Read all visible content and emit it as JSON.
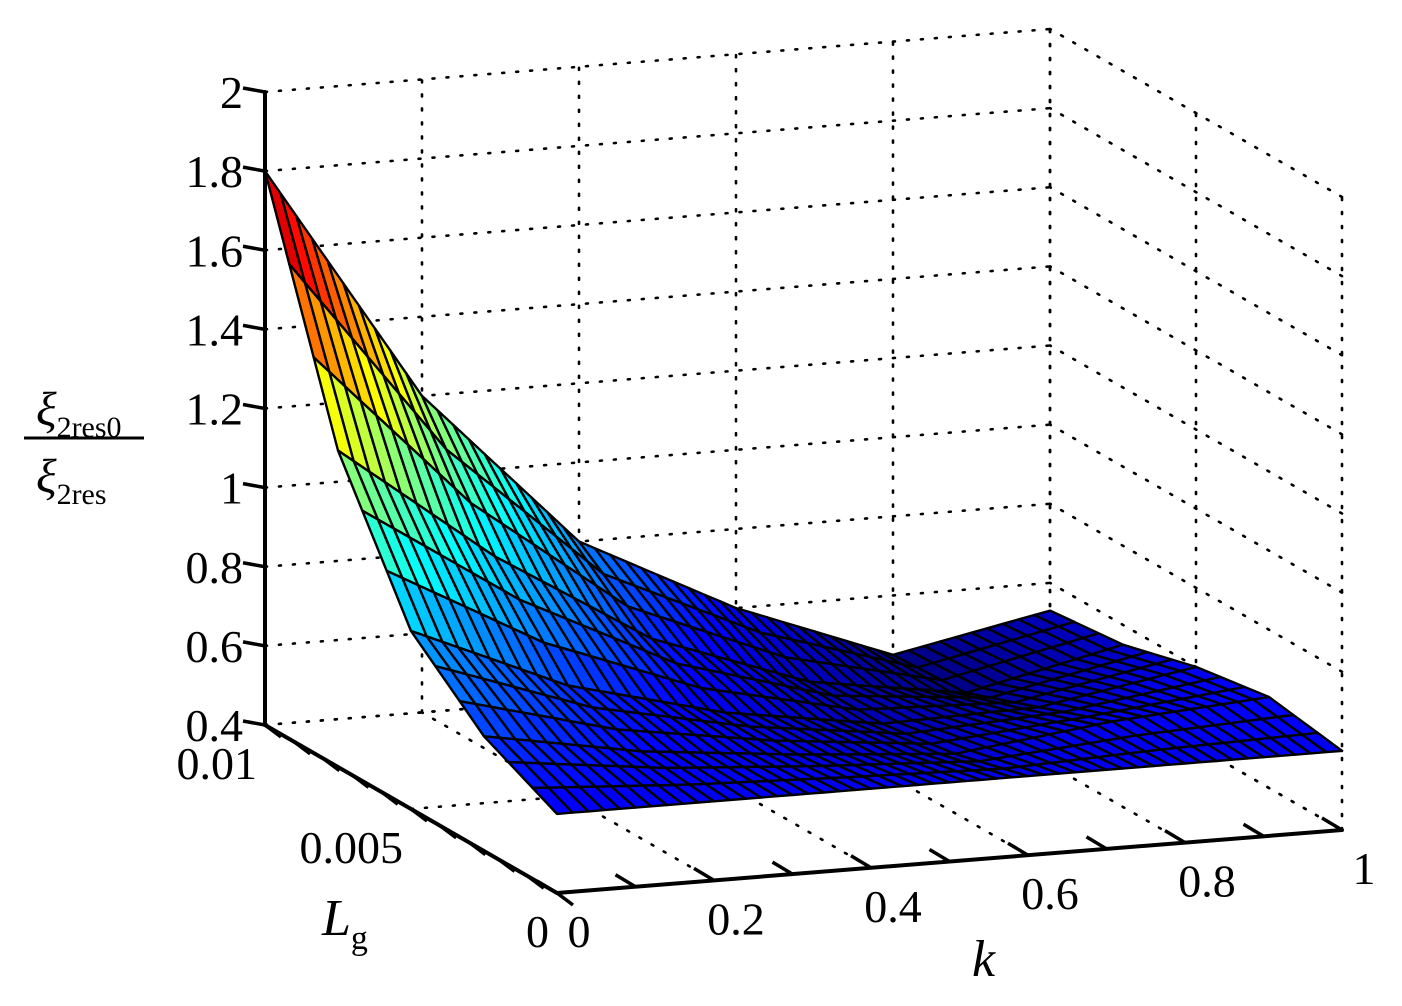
{
  "chart_data": {
    "type": "surface",
    "x_axis": {
      "label": "k",
      "range": [
        0,
        1
      ],
      "ticks": [
        0,
        0.2,
        0.4,
        0.6,
        0.8,
        1
      ],
      "tick_labels": [
        "0",
        "0.2",
        "0.4",
        "0.6",
        "0.8",
        "1"
      ]
    },
    "y_axis": {
      "label": "L",
      "label_subscript": "g",
      "range": [
        0,
        0.01
      ],
      "ticks": [
        0,
        0.005,
        0.01
      ],
      "tick_labels": [
        "0",
        "0.005",
        "0.01"
      ]
    },
    "z_axis": {
      "label_numerator": "ξ",
      "label_numerator_subscript": "2res0",
      "label_denominator": "ξ",
      "label_denominator_subscript": "2res",
      "range": [
        0.4,
        2
      ],
      "ticks": [
        0.4,
        0.6,
        0.8,
        1,
        1.2,
        1.4,
        1.6,
        1.8,
        2
      ],
      "tick_labels": [
        "0.4",
        "0.6",
        "0.8",
        "1",
        "1.2",
        "1.4",
        "1.6",
        "1.8",
        "2"
      ]
    },
    "grid": true,
    "colormap": "jet",
    "k_samples": [
      0,
      0.2,
      0.4,
      0.6,
      0.8,
      1
    ],
    "Lg_samples": [
      0,
      0.0025,
      0.005,
      0.0075,
      0.01
    ],
    "z_values_by_Lg": [
      [
        0.6,
        0.6,
        0.6,
        0.6,
        0.6,
        0.6
      ],
      [
        0.69,
        0.62,
        0.58,
        0.55,
        0.6,
        0.63
      ],
      [
        0.85,
        0.68,
        0.58,
        0.52,
        0.53,
        0.6
      ],
      [
        1.2,
        0.9,
        0.66,
        0.52,
        0.46,
        0.55
      ],
      [
        1.8,
        1.2,
        0.8,
        0.6,
        0.45,
        0.53
      ]
    ]
  }
}
